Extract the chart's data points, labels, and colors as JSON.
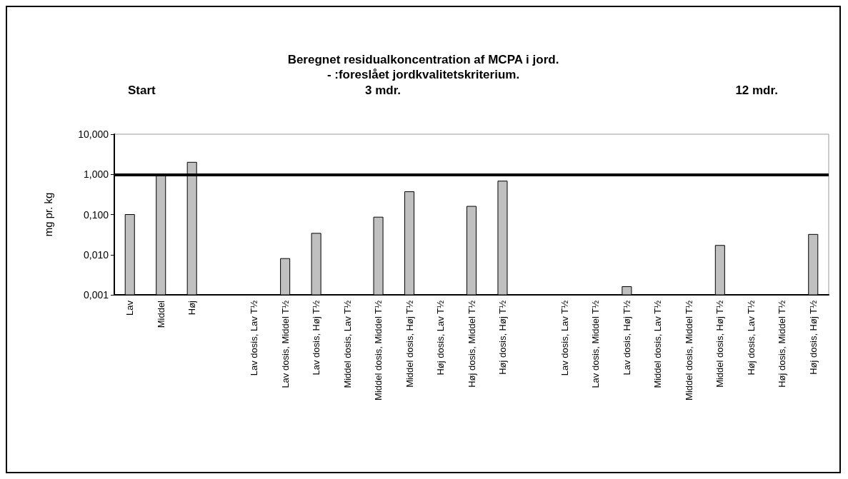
{
  "chart_data": {
    "type": "bar",
    "title": "Beregnet residualkoncentration af MCPA i jord.\n- :foreslået jordkvalitetskriterium.",
    "ylabel": "mg pr. kg",
    "categories": [
      "Lav",
      "Middel",
      "Høj",
      null,
      "Lav dosis, Lav T½",
      "Lav dosis, Middel T½",
      "Lav dosis, Høj T½",
      "Middel dosis, Lav T½",
      "Middel dosis, Middel T½",
      "Middel dosis, Høj T½",
      "Høj dosis, Lav T½",
      "Høj dosis, Middel T½",
      "Høj dosis, Høj T½",
      null,
      "Lav dosis, Lav T½",
      "Lav dosis, Middel T½",
      "Lav dosis, Høj T½",
      "Middel dosis, Lav T½",
      "Middel dosis, Middel T½",
      "Middel dosis, Høj T½",
      "Høj dosis, Lav T½",
      "Høj dosis, Middel T½",
      "Høj dosis, Høj T½"
    ],
    "values": [
      0.1,
      1.0,
      2.0,
      null,
      null,
      0.008,
      0.034,
      null,
      0.086,
      0.37,
      null,
      0.16,
      0.68,
      null,
      null,
      null,
      0.0016,
      null,
      null,
      0.017,
      null,
      null,
      0.032
    ],
    "color": "#c0c0c0",
    "log": "y",
    "ylim": [
      0.001,
      10
    ],
    "yticks": [
      {
        "value": 0.001,
        "label": "0,001"
      },
      {
        "value": 0.01,
        "label": "0,010"
      },
      {
        "value": 0.1,
        "label": "0,100"
      },
      {
        "value": 1,
        "label": "1,000"
      },
      {
        "value": 10,
        "label": "10,000"
      }
    ],
    "ref_lines": [
      {
        "axis": "y",
        "value": 1,
        "color": "#000000"
      }
    ],
    "annotations": [
      "Start",
      "3 mdr.",
      "12 mdr."
    ]
  }
}
